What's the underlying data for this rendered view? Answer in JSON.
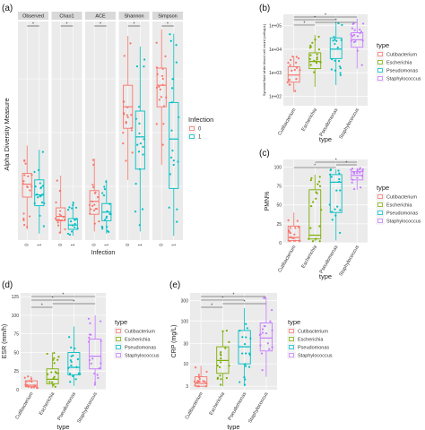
{
  "panels": {
    "a": {
      "tag": "(a)"
    },
    "b": {
      "tag": "(b)"
    },
    "c": {
      "tag": "(c)"
    },
    "d": {
      "tag": "(d)"
    },
    "e": {
      "tag": "(e)"
    }
  },
  "colors": {
    "infection": {
      "0": "#F8766D",
      "1": "#00BFC4"
    },
    "type": {
      "Cutibacterium": "#F8766D",
      "Escherichia": "#7CAE00",
      "Pseudomonas": "#00BFC4",
      "Staphylococcus": "#C77CFF"
    },
    "panel_bg": "#EBEBEB",
    "strip_bg": "#D9D9D9"
  },
  "chart_data": [
    {
      "id": "a",
      "type": "box",
      "ylabel": "Alpha Diversity Measure",
      "xlabel": "Infection",
      "legend": {
        "title": "Infection",
        "entries": [
          "0",
          "1"
        ],
        "position": "right"
      },
      "facets": [
        {
          "name": "Observed",
          "groups": [
            {
              "group": "0",
              "q1": 0.2,
              "median": 0.26,
              "q3": 0.31,
              "whisk_lo": 0.05,
              "whisk_hi": 0.44
            },
            {
              "group": "1",
              "q1": 0.16,
              "median": 0.21,
              "q3": 0.28,
              "whisk_lo": 0.03,
              "whisk_hi": 0.42
            }
          ]
        },
        {
          "name": "Chao1",
          "groups": [
            {
              "group": "0",
              "q1": 0.09,
              "median": 0.11,
              "q3": 0.15,
              "whisk_lo": 0.03,
              "whisk_hi": 0.3
            },
            {
              "group": "1",
              "q1": 0.05,
              "median": 0.07,
              "q3": 0.1,
              "whisk_lo": 0.02,
              "whisk_hi": 0.18
            }
          ]
        },
        {
          "name": "ACE",
          "groups": [
            {
              "group": "0",
              "q1": 0.12,
              "median": 0.18,
              "q3": 0.23,
              "whisk_lo": 0.04,
              "whisk_hi": 0.38
            },
            {
              "group": "1",
              "q1": 0.09,
              "median": 0.13,
              "q3": 0.17,
              "whisk_lo": 0.03,
              "whisk_hi": 0.28
            }
          ]
        },
        {
          "name": "Shannon",
          "groups": [
            {
              "group": "0",
              "q1": 0.52,
              "median": 0.62,
              "q3": 0.72,
              "whisk_lo": 0.28,
              "whisk_hi": 0.95
            },
            {
              "group": "1",
              "q1": 0.33,
              "median": 0.48,
              "q3": 0.6,
              "whisk_lo": 0.04,
              "whisk_hi": 0.9
            }
          ]
        },
        {
          "name": "Simpson",
          "groups": [
            {
              "group": "0",
              "q1": 0.62,
              "median": 0.72,
              "q3": 0.8,
              "whisk_lo": 0.35,
              "whisk_hi": 0.98
            },
            {
              "group": "1",
              "q1": 0.24,
              "median": 0.47,
              "q3": 0.64,
              "whisk_lo": 0.02,
              "whisk_hi": 0.96
            }
          ]
        }
      ],
      "sig_label": "*"
    },
    {
      "id": "b",
      "type": "box",
      "ylabel": "Synovial fluid white blood cell count (cells/µL)",
      "xlabel": "type",
      "yscale": "log",
      "yticks": [
        "1e+02",
        "1e+03",
        "1e+04",
        "1e+05"
      ],
      "ylim": [
        40,
        300000
      ],
      "categories": [
        "Cutibacterium",
        "Escherichia",
        "Pseudomonas",
        "Staphylococcus"
      ],
      "legend": {
        "title": "type",
        "entries": [
          "Cutibacterium",
          "Escherichia",
          "Pseudomonas",
          "Staphylococcus"
        ],
        "position": "right"
      },
      "boxes": [
        {
          "category": "Cutibacterium",
          "whisk_lo": 150,
          "q1": 400,
          "median": 800,
          "q3": 1800,
          "whisk_hi": 5000
        },
        {
          "category": "Escherichia",
          "whisk_lo": 250,
          "q1": 1500,
          "median": 3000,
          "q3": 7000,
          "whisk_hi": 40000
        },
        {
          "category": "Pseudomonas",
          "whisk_lo": 300,
          "q1": 4000,
          "median": 10000,
          "q3": 30000,
          "whisk_hi": 150000
        },
        {
          "category": "Staphylococcus",
          "whisk_lo": 1500,
          "q1": 12000,
          "median": 25000,
          "q3": 50000,
          "whisk_hi": 200000
        }
      ],
      "sig_label": "*"
    },
    {
      "id": "c",
      "type": "box",
      "ylabel": "PMN%",
      "xlabel": "type",
      "yticks": [
        0,
        25,
        50,
        75,
        100
      ],
      "ylim": [
        0,
        110
      ],
      "categories": [
        "Cutibacterium",
        "Escherichia",
        "Pseudomonas",
        "Staphylococcus"
      ],
      "legend": {
        "title": "type",
        "entries": [
          "Cutibacterium",
          "Escherichia",
          "Pseudomonas",
          "Staphylococcus"
        ],
        "position": "right"
      },
      "boxes": [
        {
          "category": "Cutibacterium",
          "whisk_lo": 1,
          "q1": 3,
          "median": 7,
          "q3": 22,
          "whisk_hi": 40
        },
        {
          "category": "Escherichia",
          "whisk_lo": 2,
          "q1": 5,
          "median": 10,
          "q3": 70,
          "whisk_hi": 90
        },
        {
          "category": "Pseudomonas",
          "whisk_lo": 3,
          "q1": 40,
          "median": 80,
          "q3": 90,
          "whisk_hi": 97
        },
        {
          "category": "Staphylococcus",
          "whisk_lo": 70,
          "q1": 83,
          "median": 89,
          "q3": 94,
          "whisk_hi": 99
        }
      ],
      "sig_label": "*"
    },
    {
      "id": "d",
      "type": "box",
      "ylabel": "ESR (mm/h)",
      "xlabel": "type",
      "yticks": [
        0,
        25,
        50,
        75,
        100,
        125
      ],
      "ylim": [
        0,
        130
      ],
      "categories": [
        "Cutibacterium",
        "Escherichia",
        "Pseudomonas",
        "Staphylococcus"
      ],
      "legend": {
        "title": "type",
        "entries": [
          "Cutibacterium",
          "Escherichia",
          "Pseudomonas",
          "Staphylococcus"
        ],
        "position": "right"
      },
      "boxes": [
        {
          "category": "Cutibacterium",
          "whisk_lo": 2,
          "q1": 4,
          "median": 6,
          "q3": 12,
          "whisk_hi": 18
        },
        {
          "category": "Escherichia",
          "whisk_lo": 3,
          "q1": 8,
          "median": 14,
          "q3": 28,
          "whisk_hi": 50
        },
        {
          "category": "Pseudomonas",
          "whisk_lo": 5,
          "q1": 20,
          "median": 30,
          "q3": 50,
          "whisk_hi": 85
        },
        {
          "category": "Staphylococcus",
          "whisk_lo": 6,
          "q1": 28,
          "median": 45,
          "q3": 68,
          "whisk_hi": 100
        }
      ],
      "sig_label": "*"
    },
    {
      "id": "e",
      "type": "box",
      "ylabel": "CRP (mg/L)",
      "xlabel": "type",
      "yscale": "log",
      "yticks": [
        3,
        10,
        30,
        100,
        300
      ],
      "ylim": [
        2.5,
        450
      ],
      "categories": [
        "Cutibacterium",
        "Escherichia",
        "Pseudomonas",
        "Staphylococcus"
      ],
      "legend": {
        "title": "type",
        "entries": [
          "Cutibacterium",
          "Escherichia",
          "Pseudomonas",
          "Staphylococcus"
        ],
        "position": "right"
      },
      "boxes": [
        {
          "category": "Cutibacterium",
          "whisk_lo": 3,
          "q1": 3,
          "median": 3.5,
          "q3": 5,
          "whisk_hi": 9
        },
        {
          "category": "Escherichia",
          "whisk_lo": 3,
          "q1": 6,
          "median": 12,
          "q3": 25,
          "whisk_hi": 60
        },
        {
          "category": "Pseudomonas",
          "whisk_lo": 3,
          "q1": 10,
          "median": 25,
          "q3": 60,
          "whisk_hi": 200
        },
        {
          "category": "Staphylococcus",
          "whisk_lo": 5,
          "q1": 20,
          "median": 40,
          "q3": 90,
          "whisk_hi": 350
        }
      ],
      "sig_label": "*"
    }
  ]
}
